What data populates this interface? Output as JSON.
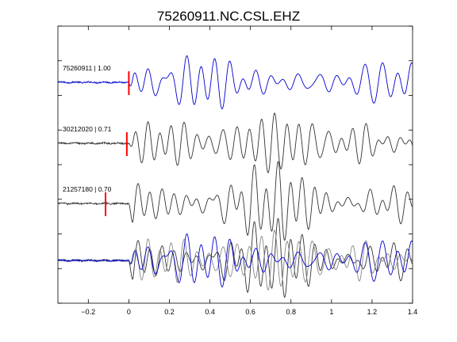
{
  "chart_data": {
    "type": "line",
    "title": "75260911.NC.CSL.EHZ",
    "xlabel": "",
    "ylabel": "",
    "xlim": [
      -0.35,
      1.4
    ],
    "x_ticks": [
      -0.2,
      0,
      0.2,
      0.4,
      0.6,
      0.8,
      1,
      1.2,
      1.4
    ],
    "x_tick_labels": [
      "−0.2",
      "0",
      "0.2",
      "0.4",
      "0.6",
      "0.8",
      "1",
      "1.2",
      "1.4"
    ],
    "y_ticks_count": 9,
    "grid": false,
    "legend": "none",
    "colors": {
      "target": "#0000cc",
      "match": "#333333",
      "overlay_match": "#888888",
      "pick": "#ff0000"
    },
    "traces": [
      {
        "label": "75260911 | 1.00",
        "event_id": "75260911",
        "correlation": 1.0,
        "color": "#0000cc",
        "pick_time": 0.0,
        "onset": 0.0
      },
      {
        "label": "30212020 | 0.71",
        "event_id": "30212020",
        "correlation": 0.71,
        "color": "#333333",
        "pick_time": -0.01,
        "onset": 0.0
      },
      {
        "label": "21257180 | 0.70",
        "event_id": "21257180",
        "correlation": 0.7,
        "color": "#333333",
        "pick_time": -0.115,
        "onset": 0.0
      }
    ],
    "overlay": {
      "traces": [
        "75260911",
        "30212020",
        "21257180"
      ]
    }
  }
}
